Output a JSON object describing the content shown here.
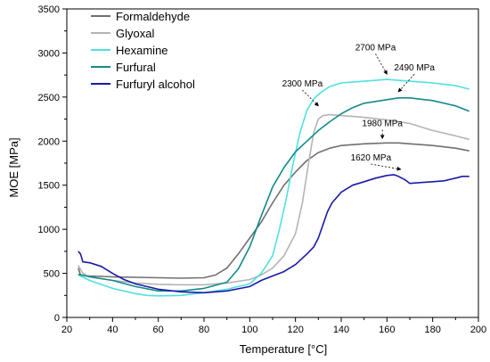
{
  "chart_data": {
    "type": "line",
    "title": "",
    "xlabel": "Temperature [°C]",
    "ylabel": "MOE [MPa]",
    "xlim": [
      20,
      200
    ],
    "ylim": [
      0,
      3500
    ],
    "xticks": [
      20,
      40,
      60,
      80,
      100,
      120,
      140,
      160,
      180,
      200
    ],
    "yticks": [
      0,
      500,
      1000,
      1500,
      2000,
      2500,
      3000,
      3500
    ],
    "grid": false,
    "legend_position": "top-left",
    "series": [
      {
        "name": "Formaldehyde",
        "color": "#707070",
        "points": [
          [
            25,
            560
          ],
          [
            26,
            480
          ],
          [
            30,
            470
          ],
          [
            40,
            460
          ],
          [
            50,
            455
          ],
          [
            60,
            450
          ],
          [
            70,
            445
          ],
          [
            80,
            450
          ],
          [
            85,
            480
          ],
          [
            90,
            560
          ],
          [
            95,
            720
          ],
          [
            100,
            900
          ],
          [
            105,
            1080
          ],
          [
            110,
            1300
          ],
          [
            115,
            1500
          ],
          [
            120,
            1650
          ],
          [
            125,
            1780
          ],
          [
            130,
            1870
          ],
          [
            135,
            1920
          ],
          [
            140,
            1950
          ],
          [
            150,
            1970
          ],
          [
            160,
            1980
          ],
          [
            165,
            1980
          ],
          [
            170,
            1970
          ],
          [
            180,
            1950
          ],
          [
            190,
            1920
          ],
          [
            196,
            1890
          ]
        ]
      },
      {
        "name": "Glyoxal",
        "color": "#b4b4b4",
        "points": [
          [
            25,
            590
          ],
          [
            27,
            500
          ],
          [
            30,
            460
          ],
          [
            40,
            420
          ],
          [
            50,
            390
          ],
          [
            60,
            375
          ],
          [
            70,
            370
          ],
          [
            80,
            370
          ],
          [
            90,
            390
          ],
          [
            100,
            430
          ],
          [
            105,
            480
          ],
          [
            110,
            560
          ],
          [
            115,
            700
          ],
          [
            120,
            950
          ],
          [
            123,
            1300
          ],
          [
            126,
            1800
          ],
          [
            128,
            2100
          ],
          [
            130,
            2250
          ],
          [
            132,
            2290
          ],
          [
            135,
            2300
          ],
          [
            140,
            2290
          ],
          [
            150,
            2270
          ],
          [
            160,
            2240
          ],
          [
            170,
            2200
          ],
          [
            180,
            2120
          ],
          [
            190,
            2060
          ],
          [
            196,
            2020
          ]
        ]
      },
      {
        "name": "Hexamine",
        "color": "#4fe0de",
        "points": [
          [
            25,
            480
          ],
          [
            30,
            420
          ],
          [
            40,
            330
          ],
          [
            50,
            270
          ],
          [
            55,
            250
          ],
          [
            60,
            245
          ],
          [
            70,
            250
          ],
          [
            80,
            280
          ],
          [
            90,
            320
          ],
          [
            100,
            380
          ],
          [
            105,
            500
          ],
          [
            110,
            700
          ],
          [
            113,
            1000
          ],
          [
            116,
            1350
          ],
          [
            119,
            1750
          ],
          [
            122,
            2100
          ],
          [
            125,
            2350
          ],
          [
            128,
            2480
          ],
          [
            131,
            2550
          ],
          [
            135,
            2620
          ],
          [
            140,
            2660
          ],
          [
            150,
            2680
          ],
          [
            160,
            2700
          ],
          [
            170,
            2680
          ],
          [
            180,
            2660
          ],
          [
            190,
            2630
          ],
          [
            196,
            2590
          ]
        ]
      },
      {
        "name": "Furfural",
        "color": "#138a8a",
        "points": [
          [
            25,
            490
          ],
          [
            30,
            460
          ],
          [
            40,
            420
          ],
          [
            50,
            350
          ],
          [
            60,
            300
          ],
          [
            70,
            300
          ],
          [
            80,
            330
          ],
          [
            90,
            400
          ],
          [
            95,
            550
          ],
          [
            100,
            800
          ],
          [
            105,
            1150
          ],
          [
            110,
            1480
          ],
          [
            115,
            1700
          ],
          [
            120,
            1880
          ],
          [
            125,
            2000
          ],
          [
            130,
            2120
          ],
          [
            135,
            2220
          ],
          [
            140,
            2310
          ],
          [
            145,
            2380
          ],
          [
            150,
            2430
          ],
          [
            160,
            2470
          ],
          [
            165,
            2490
          ],
          [
            170,
            2490
          ],
          [
            180,
            2460
          ],
          [
            190,
            2400
          ],
          [
            196,
            2340
          ]
        ]
      },
      {
        "name": "Furfuryl alcohol",
        "color": "#1a1aaa",
        "points": [
          [
            25,
            750
          ],
          [
            26,
            720
          ],
          [
            27,
            630
          ],
          [
            30,
            620
          ],
          [
            35,
            580
          ],
          [
            40,
            500
          ],
          [
            45,
            430
          ],
          [
            50,
            380
          ],
          [
            55,
            350
          ],
          [
            60,
            320
          ],
          [
            70,
            290
          ],
          [
            80,
            280
          ],
          [
            90,
            300
          ],
          [
            100,
            350
          ],
          [
            105,
            420
          ],
          [
            110,
            470
          ],
          [
            115,
            520
          ],
          [
            120,
            600
          ],
          [
            125,
            720
          ],
          [
            128,
            800
          ],
          [
            130,
            900
          ],
          [
            132,
            1050
          ],
          [
            134,
            1200
          ],
          [
            136,
            1300
          ],
          [
            140,
            1420
          ],
          [
            145,
            1500
          ],
          [
            150,
            1540
          ],
          [
            155,
            1580
          ],
          [
            160,
            1610
          ],
          [
            163,
            1620
          ],
          [
            165,
            1600
          ],
          [
            168,
            1560
          ],
          [
            170,
            1520
          ],
          [
            175,
            1530
          ],
          [
            180,
            1540
          ],
          [
            185,
            1550
          ],
          [
            190,
            1580
          ],
          [
            193,
            1600
          ],
          [
            196,
            1600
          ]
        ]
      }
    ],
    "annotations": [
      {
        "text": "2300 MPa",
        "x": 123,
        "y": 2620,
        "target": [
          130,
          2400
        ]
      },
      {
        "text": "2700 MPa",
        "x": 155,
        "y": 3030,
        "target": [
          160,
          2760
        ]
      },
      {
        "text": "2490 MPa",
        "x": 172,
        "y": 2800,
        "target": [
          165,
          2560
        ]
      },
      {
        "text": "1980 MPa",
        "x": 158,
        "y": 2170,
        "target": [
          158,
          2030
        ]
      },
      {
        "text": "1620 MPa",
        "x": 153,
        "y": 1780,
        "target": [
          166,
          1680
        ]
      }
    ]
  }
}
